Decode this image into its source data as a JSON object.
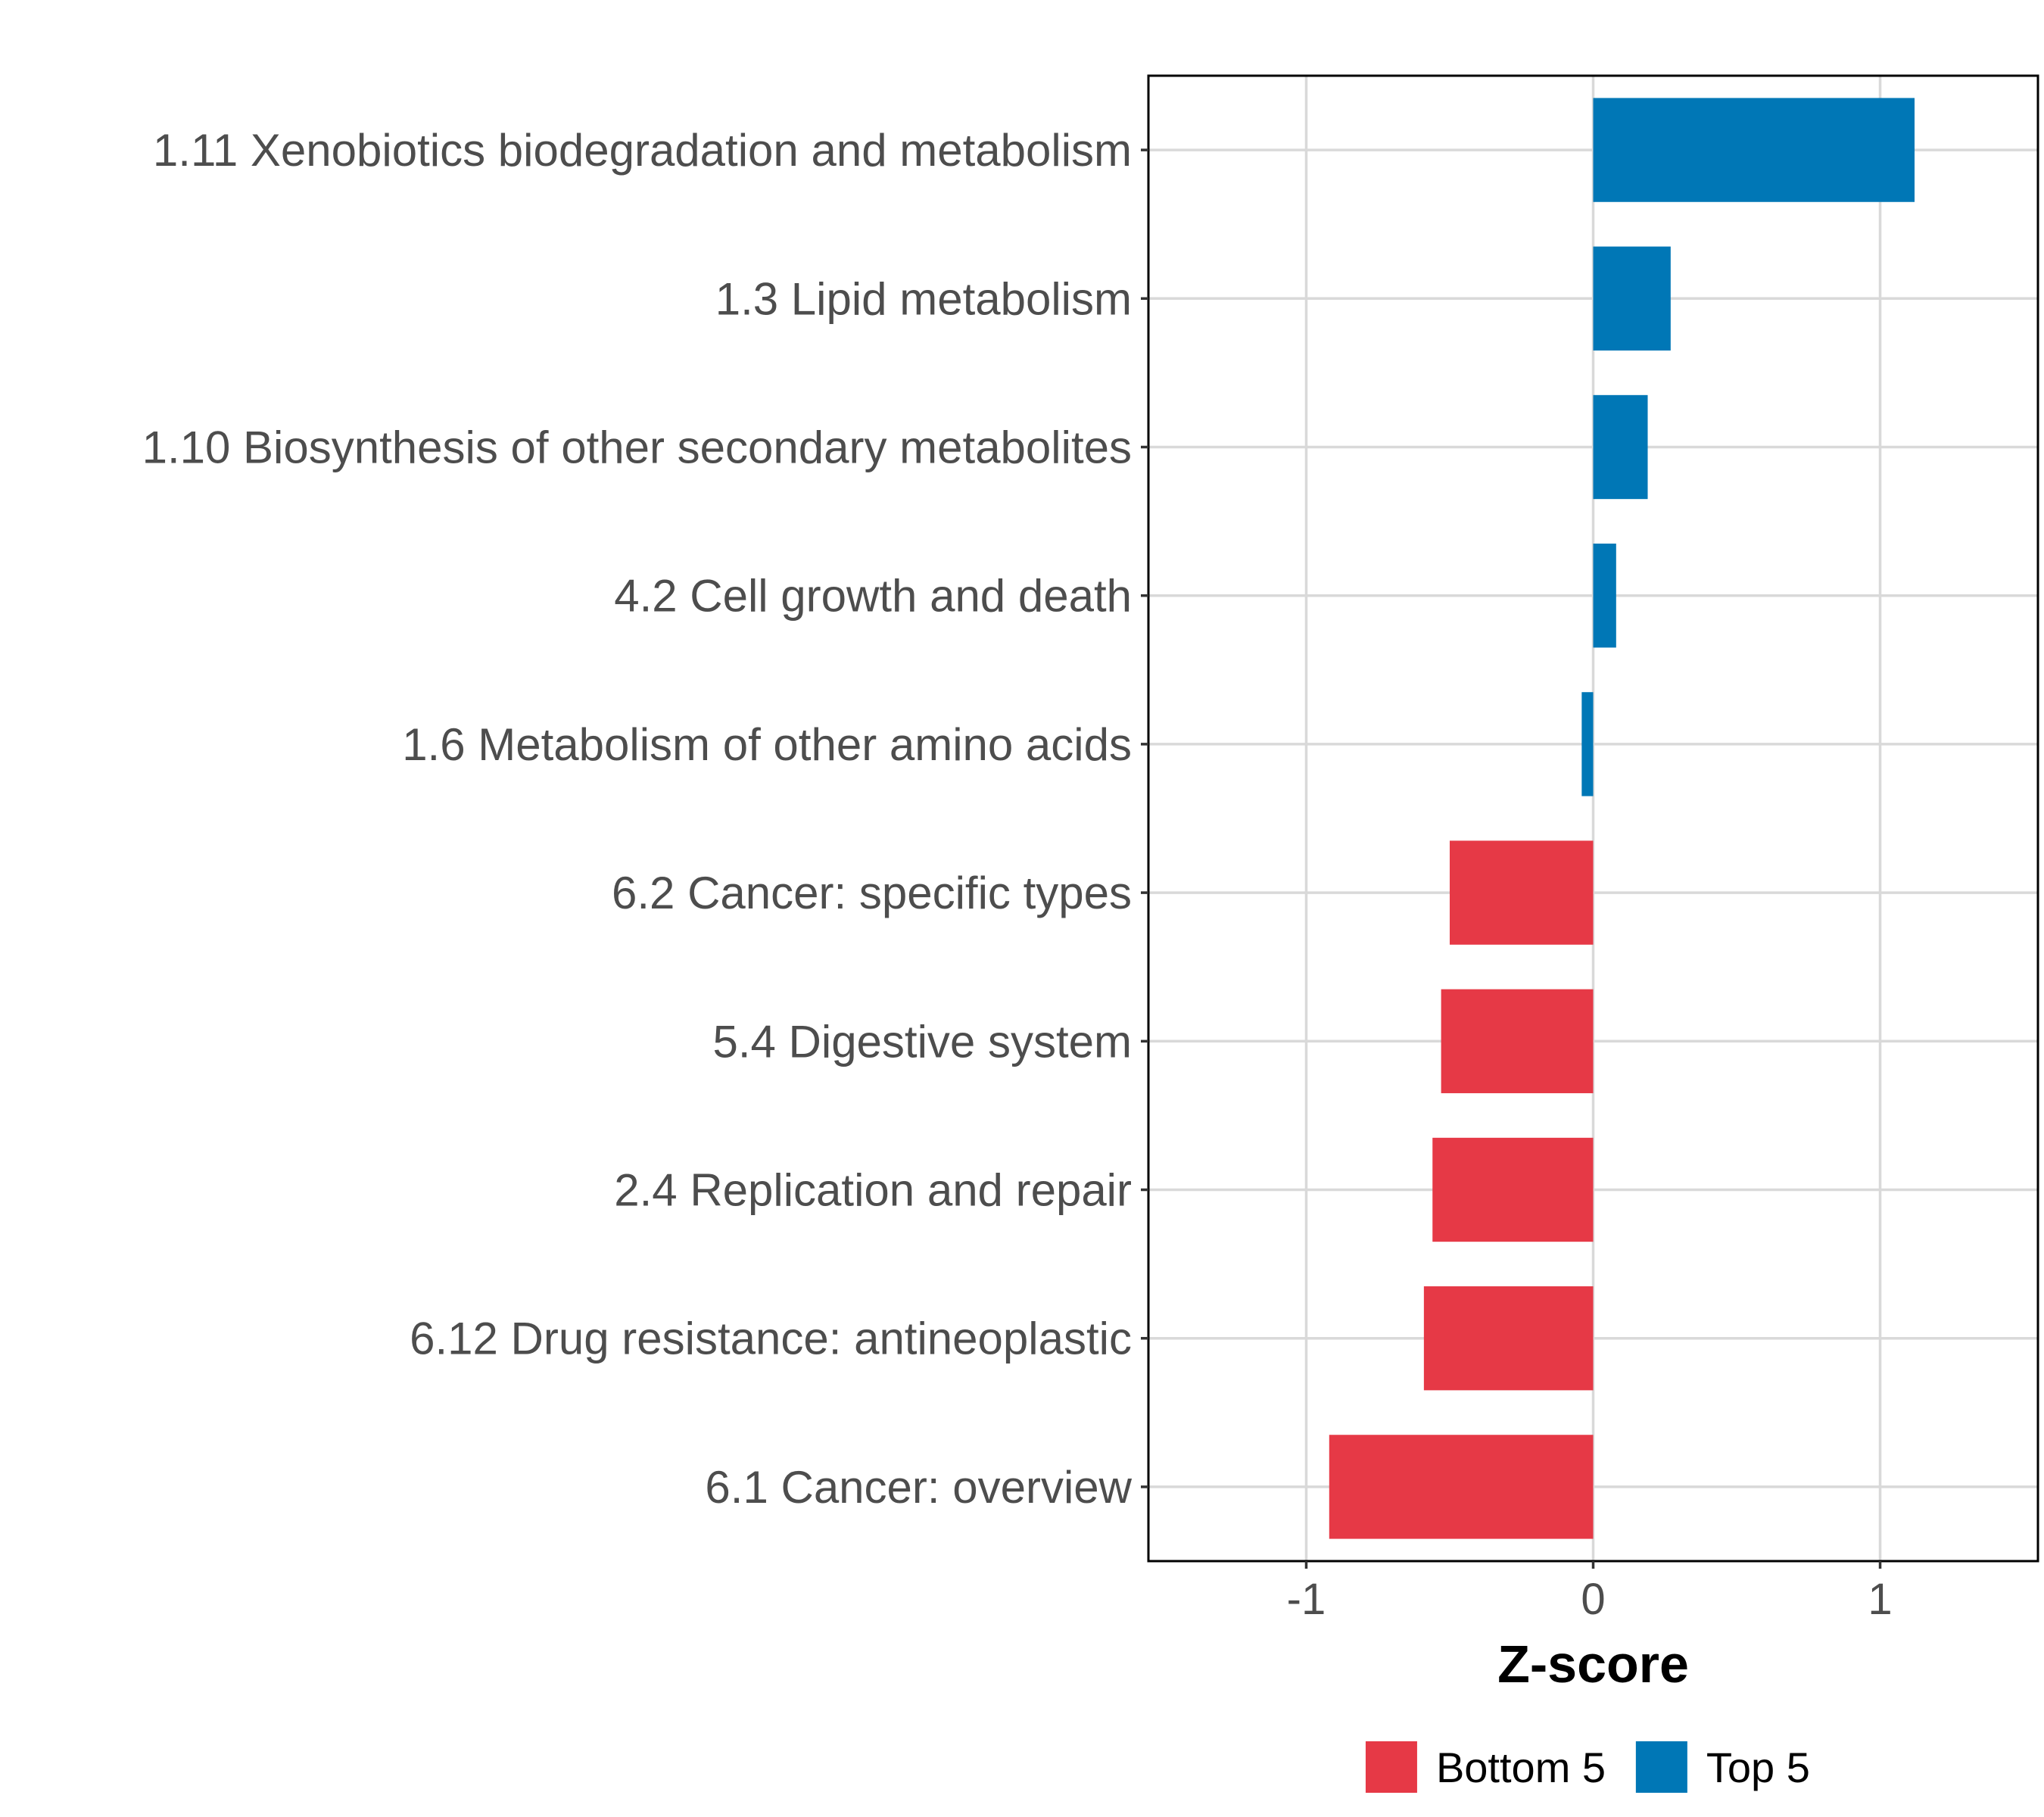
{
  "chart_data": {
    "type": "bar",
    "orientation": "horizontal",
    "categories": [
      "1.11 Xenobiotics biodegradation and metabolism",
      "1.3 Lipid metabolism",
      "1.10 Biosynthesis of other secondary metabolites",
      "4.2 Cell growth and death",
      "1.6 Metabolism of other amino acids",
      "6.2 Cancer: specific types",
      "5.4 Digestive system",
      "2.4 Replication and repair",
      "6.12 Drug resistance: antineoplastic",
      "6.1 Cancer: overview"
    ],
    "values": [
      1.12,
      0.27,
      0.19,
      0.08,
      -0.04,
      -0.5,
      -0.53,
      -0.56,
      -0.59,
      -0.92
    ],
    "groups": [
      "Top 5",
      "Top 5",
      "Top 5",
      "Top 5",
      "Top 5",
      "Bottom 5",
      "Bottom 5",
      "Bottom 5",
      "Bottom 5",
      "Bottom 5"
    ],
    "title": "",
    "xlabel": "Z-score",
    "ylabel": "",
    "xlim": [
      -1.55,
      1.55
    ],
    "xticks": [
      -1,
      0,
      1
    ],
    "xtick_labels": [
      "-1",
      "0",
      "1"
    ],
    "grid": true,
    "legend": {
      "position": "bottom",
      "entries": [
        {
          "label": "Bottom 5",
          "color": "#e63946"
        },
        {
          "label": "Top 5",
          "color": "#0077b6"
        }
      ]
    }
  }
}
